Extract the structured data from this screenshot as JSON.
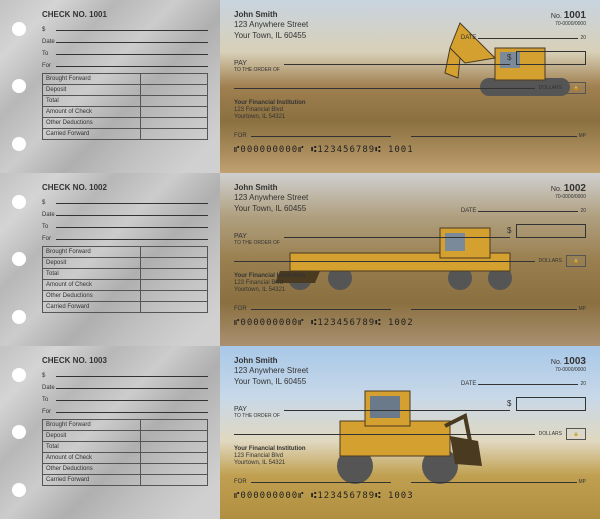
{
  "payee": {
    "name": "John Smith",
    "street": "123 Anywhere Street",
    "city": "Your Town, IL 60455"
  },
  "bank": {
    "name": "Your Financial Institution",
    "street": "123 Financial Blvd",
    "city": "Yourtown, IL 54321"
  },
  "routing_small": "70-0000/0000",
  "stub": {
    "dollar": "$",
    "date": "Date",
    "to": "To",
    "for": "For",
    "rows": [
      "Brought Forward",
      "Deposit",
      "Total",
      "Amount of Check",
      "Other Deductions",
      "Carried Forward"
    ]
  },
  "check_labels": {
    "no": "No.",
    "date": "DATE",
    "pay1": "PAY",
    "pay2": "TO THE ORDER OF",
    "dollars": "DOLLARS",
    "for": "FOR",
    "mp": "MP",
    "lock": "🔒",
    "date_yr": "20"
  },
  "micr": "⑈000000000⑈  ⑆123456789⑆",
  "checks": [
    {
      "num": "1001",
      "stub_title": "CHECK NO. 1001",
      "micr_num": "1001",
      "bg": "bg1",
      "machine": "excavator"
    },
    {
      "num": "1002",
      "stub_title": "CHECK NO. 1002",
      "micr_num": "1002",
      "bg": "bg2",
      "machine": "grader"
    },
    {
      "num": "1003",
      "stub_title": "CHECK NO. 1003",
      "micr_num": "1003",
      "bg": "bg3",
      "machine": "loader"
    }
  ],
  "colors": {
    "machine_yellow": "#d4a030",
    "machine_dark": "#4a3a20",
    "track": "#555"
  }
}
